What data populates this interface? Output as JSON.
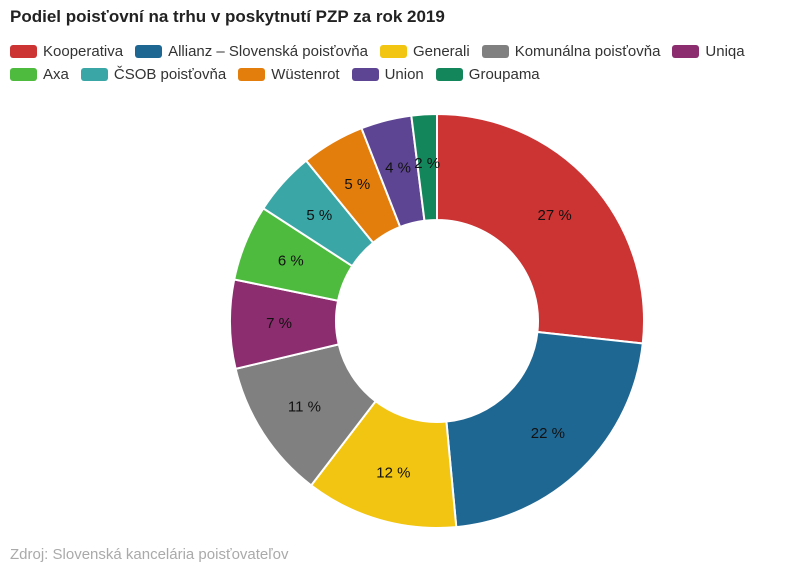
{
  "chart_data": {
    "type": "pie",
    "variant": "donut",
    "title": "Podiel poisťovní na trhu v poskytnutí PZP za rok 2019",
    "source": "Zdroj: Slovenská kancelária poisťovateľov",
    "legend_placement": "top",
    "value_suffix": " %",
    "slices": [
      {
        "name": "Kooperativa",
        "value": 27,
        "color": "#cc3333"
      },
      {
        "name": "Allianz – Slovenská poisťovňa",
        "value": 22,
        "color": "#1f6793"
      },
      {
        "name": "Generali",
        "value": 12,
        "color": "#f1c511"
      },
      {
        "name": "Komunálna poisťovňa",
        "value": 11,
        "color": "#808080"
      },
      {
        "name": "Uniqa",
        "value": 7,
        "color": "#8b2d6e"
      },
      {
        "name": "Axa",
        "value": 6,
        "color": "#4fbb3e"
      },
      {
        "name": "ČSOB poisťovňa",
        "value": 5,
        "color": "#3aa6a6"
      },
      {
        "name": "Wüstenrot",
        "value": 5,
        "color": "#e37e0d"
      },
      {
        "name": "Union",
        "value": 4,
        "color": "#5e4594"
      },
      {
        "name": "Groupama",
        "value": 2,
        "color": "#14865c"
      }
    ]
  }
}
